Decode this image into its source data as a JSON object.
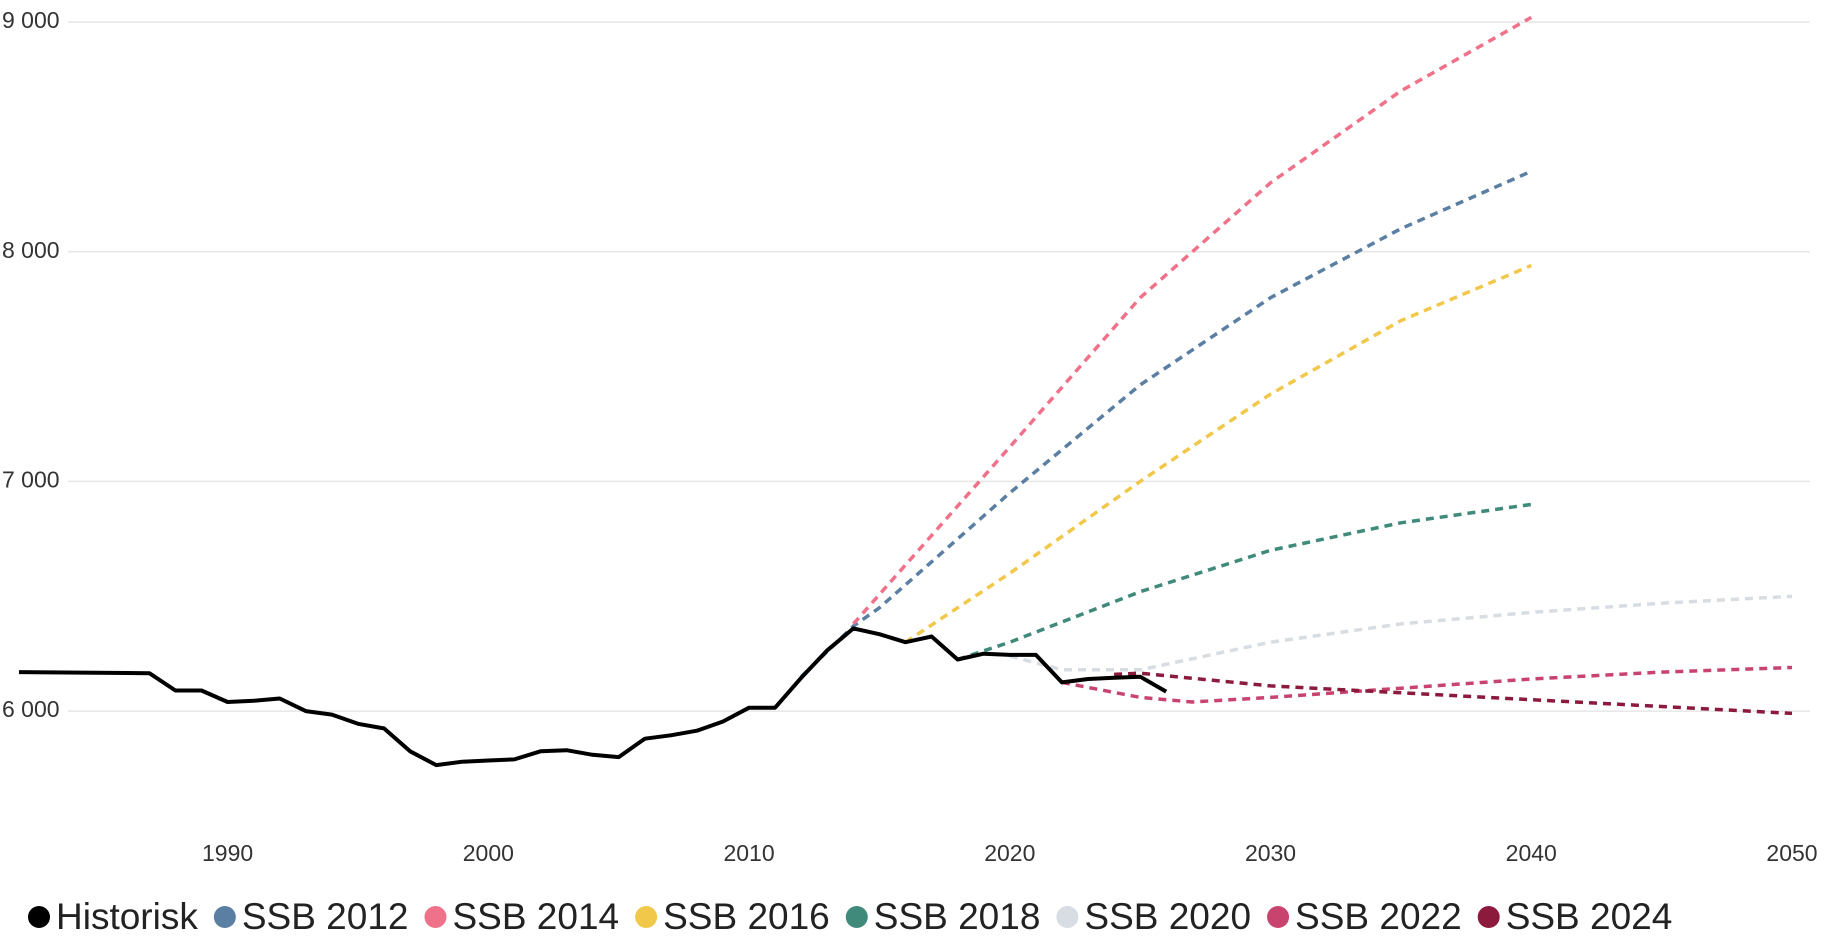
{
  "chart_data": {
    "type": "line",
    "xlim": [
      1982,
      2050
    ],
    "xticks": [
      1990,
      2000,
      2010,
      2020,
      2030,
      2040,
      2050
    ],
    "ylim": [
      5500,
      9000
    ],
    "yticks": [
      {
        "value": 6000,
        "label": "6 000"
      },
      {
        "value": 7000,
        "label": "7 000"
      },
      {
        "value": 8000,
        "label": "8 000"
      },
      {
        "value": 9000,
        "label": "9 000"
      }
    ],
    "grid": true,
    "legend": "bottom",
    "series": [
      {
        "name": "Historisk",
        "color": "#000000",
        "dashed": false,
        "x": [
          1982,
          1987,
          1988,
          1989,
          1990,
          1991,
          1992,
          1993,
          1994,
          1995,
          1996,
          1997,
          1998,
          1999,
          2000,
          2001,
          2002,
          2003,
          2004,
          2005,
          2006,
          2007,
          2008,
          2009,
          2010,
          2011,
          2012,
          2013,
          2014,
          2015,
          2016,
          2017,
          2018,
          2019,
          2020,
          2021,
          2022,
          2023,
          2024,
          2025,
          2026
        ],
        "values": [
          6170,
          6165,
          6090,
          6090,
          6040,
          6045,
          6055,
          6000,
          5985,
          5945,
          5925,
          5825,
          5765,
          5780,
          5785,
          5790,
          5825,
          5830,
          5810,
          5800,
          5880,
          5895,
          5915,
          5955,
          6015,
          6015,
          6145,
          6265,
          6360,
          6335,
          6300,
          6325,
          6225,
          6250,
          6245,
          6245,
          6125,
          6140,
          6145,
          6150,
          6085
        ]
      },
      {
        "name": "SSB 2012",
        "color": "#5b7fa3",
        "dashed": true,
        "x": [
          2012,
          2014,
          2015,
          2020,
          2025,
          2030,
          2035,
          2040
        ],
        "values": [
          6150,
          6370,
          6450,
          6950,
          7420,
          7800,
          8100,
          8350
        ]
      },
      {
        "name": "SSB 2014",
        "color": "#f0728a",
        "dashed": true,
        "x": [
          2014,
          2020,
          2025,
          2030,
          2035,
          2040
        ],
        "values": [
          6380,
          7150,
          7800,
          8300,
          8700,
          9020
        ]
      },
      {
        "name": "SSB 2016",
        "color": "#f2c84b",
        "dashed": true,
        "x": [
          2016,
          2020,
          2025,
          2030,
          2035,
          2040
        ],
        "values": [
          6300,
          6600,
          7000,
          7380,
          7700,
          7940
        ]
      },
      {
        "name": "SSB 2018",
        "color": "#3f8a7a",
        "dashed": true,
        "x": [
          2018,
          2020,
          2025,
          2030,
          2035,
          2040
        ],
        "values": [
          6225,
          6300,
          6520,
          6700,
          6820,
          6900
        ]
      },
      {
        "name": "SSB 2020",
        "color": "#d8dde3",
        "dashed": true,
        "x": [
          2020,
          2022,
          2025,
          2030,
          2035,
          2040,
          2045,
          2050
        ],
        "values": [
          6240,
          6180,
          6180,
          6300,
          6380,
          6430,
          6470,
          6500
        ]
      },
      {
        "name": "SSB 2022",
        "color": "#c9436f",
        "dashed": true,
        "x": [
          2022,
          2025,
          2027,
          2030,
          2035,
          2040,
          2045,
          2050
        ],
        "values": [
          6125,
          6060,
          6040,
          6060,
          6100,
          6140,
          6170,
          6190
        ]
      },
      {
        "name": "SSB 2024",
        "color": "#8b1a3d",
        "dashed": true,
        "x": [
          2024,
          2025,
          2030,
          2035,
          2040,
          2045,
          2050
        ],
        "values": [
          6160,
          6165,
          6110,
          6080,
          6050,
          6020,
          5990
        ]
      }
    ]
  }
}
